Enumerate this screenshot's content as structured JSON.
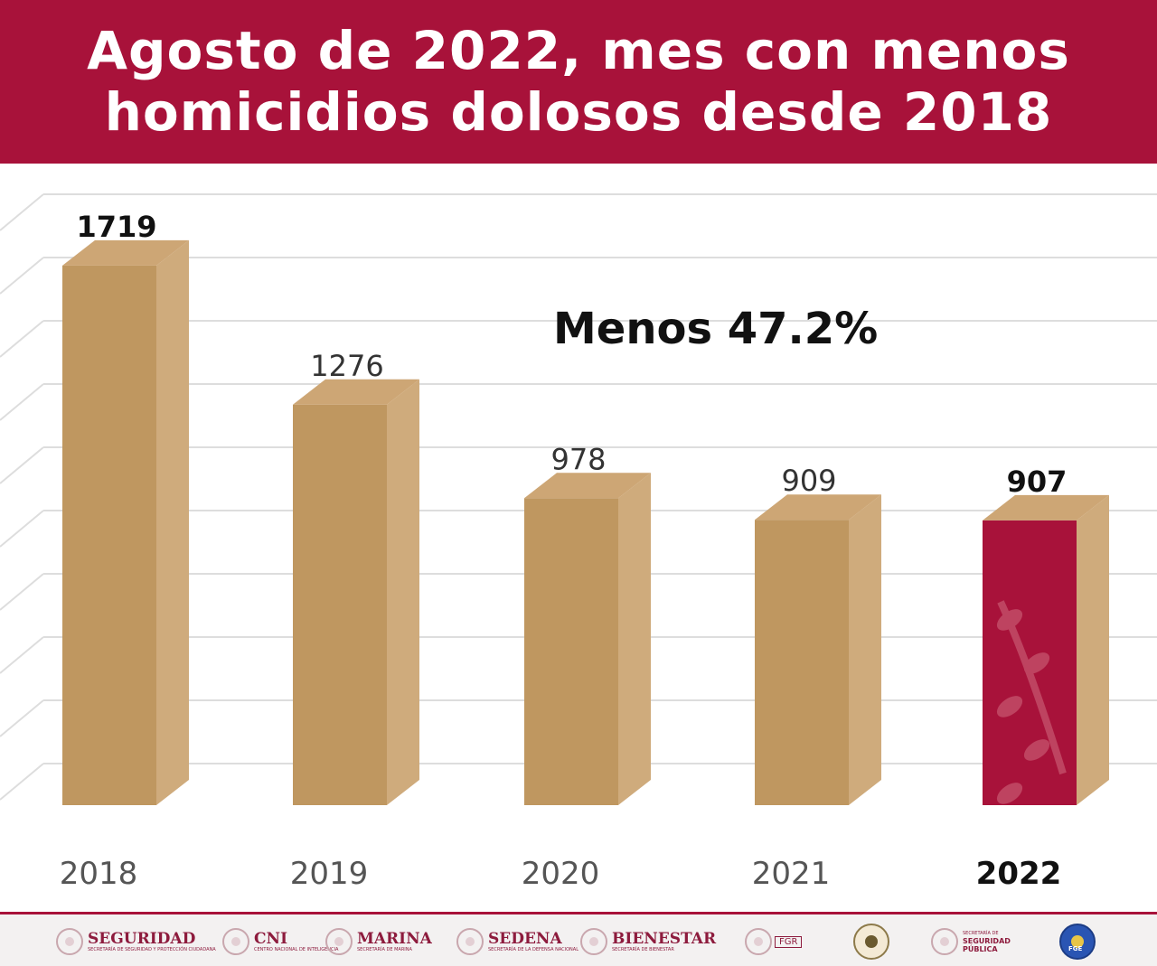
{
  "header": {
    "title_line1": "Agosto de 2022, mes con menos",
    "title_line2": "homicidios dolosos desde 2018"
  },
  "annotation": "Menos 47.2%",
  "colors": {
    "header_bg": "#a8123a",
    "bar_front": "#bf9760",
    "bar_side": "#cfab7c",
    "bar_top": "#cda675",
    "highlight_front": "#a8123a",
    "gridline": "#dddddd"
  },
  "chart_data": {
    "type": "bar",
    "title": "Agosto de 2022, mes con menos homicidios dolosos desde 2018",
    "categories": [
      "2018",
      "2019",
      "2020",
      "2021",
      "2022"
    ],
    "values": [
      1719,
      1276,
      978,
      909,
      907
    ],
    "data_labels": [
      "1719",
      "1276",
      "978",
      "909",
      "907"
    ],
    "highlight": "2022",
    "xlabel": "",
    "ylabel": "",
    "ylim": [
      0,
      1900
    ],
    "grid": true,
    "legend": "none",
    "annotation": "Menos 47.2%"
  },
  "footer": {
    "logos": [
      {
        "name": "SEGURIDAD",
        "sub": "SECRETARÍA DE SEGURIDAD Y PROTECCIÓN CIUDADANA"
      },
      {
        "name": "CNI",
        "sub": "CENTRO NACIONAL DE INTELIGENCIA"
      },
      {
        "name": "MARINA",
        "sub": "SECRETARÍA DE MARINA"
      },
      {
        "name": "SEDENA",
        "sub": "SECRETARÍA DE LA DEFENSA NACIONAL"
      },
      {
        "name": "BIENESTAR",
        "sub": "SECRETARÍA DE BIENESTAR"
      }
    ],
    "fgr": "FGR",
    "ssp_line1": "SECRETARÍA DE",
    "ssp_line2": "SEGURIDAD",
    "ssp_line3": "PÚBLICA",
    "fge": "FGE"
  }
}
